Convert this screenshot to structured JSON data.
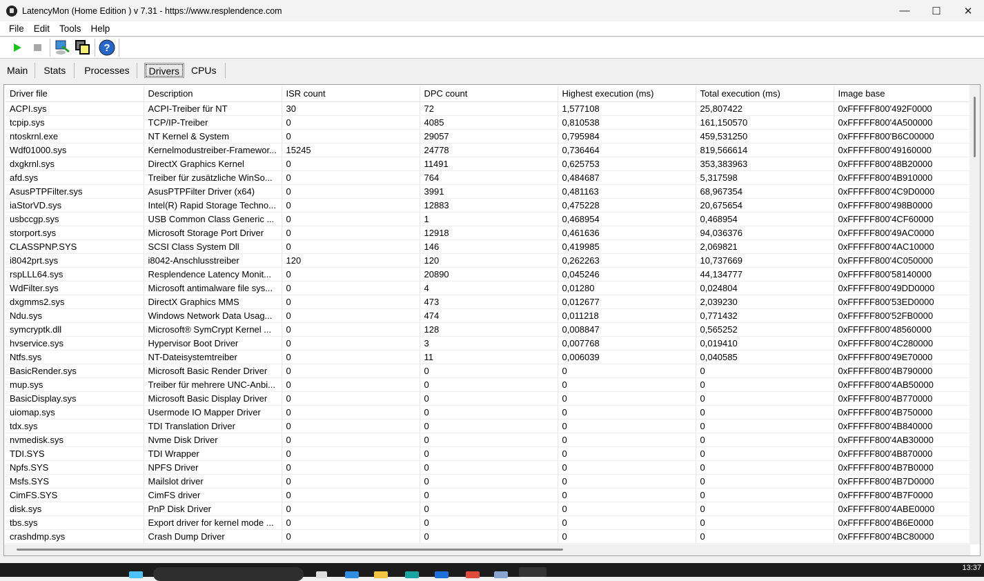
{
  "window": {
    "title": "LatencyMon  (Home Edition )  v 7.31 - https://www.resplendence.com",
    "minimize": "—",
    "maximize": "☐",
    "close": "✕"
  },
  "menu": [
    "File",
    "Edit",
    "Tools",
    "Help"
  ],
  "toolbar": {
    "icons": [
      "play-icon",
      "stop-icon",
      "computer-icon",
      "windows-icon",
      "help-icon"
    ]
  },
  "tabs": [
    {
      "label": "Main"
    },
    {
      "label": "Stats"
    },
    {
      "label": "Processes"
    },
    {
      "label": "Drivers",
      "active": true
    },
    {
      "label": "CPUs"
    }
  ],
  "table": {
    "columns": [
      "Driver file",
      "Description",
      "ISR count",
      "DPC count",
      "Highest execution (ms)",
      "Total execution (ms)",
      "Image base"
    ],
    "rows": [
      [
        "ACPI.sys",
        "ACPI-Treiber für NT",
        "30",
        "72",
        "1,577108",
        "25,807422",
        "0xFFFFF800'492F0000"
      ],
      [
        "tcpip.sys",
        "TCP/IP-Treiber",
        "0",
        "4085",
        "0,810538",
        "161,150570",
        "0xFFFFF800'4A500000"
      ],
      [
        "ntoskrnl.exe",
        "NT Kernel & System",
        "0",
        "29057",
        "0,795984",
        "459,531250",
        "0xFFFFF800'B6C00000"
      ],
      [
        "Wdf01000.sys",
        "Kernelmodustreiber-Framewor...",
        "15245",
        "24778",
        "0,736464",
        "819,566614",
        "0xFFFFF800'49160000"
      ],
      [
        "dxgkrnl.sys",
        "DirectX Graphics Kernel",
        "0",
        "11491",
        "0,625753",
        "353,383963",
        "0xFFFFF800'48B20000"
      ],
      [
        "afd.sys",
        "Treiber für zusätzliche WinSo...",
        "0",
        "764",
        "0,484687",
        "5,317598",
        "0xFFFFF800'4B910000"
      ],
      [
        "AsusPTPFilter.sys",
        "AsusPTPFilter Driver (x64)",
        "0",
        "3991",
        "0,481163",
        "68,967354",
        "0xFFFFF800'4C9D0000"
      ],
      [
        "iaStorVD.sys",
        "Intel(R) Rapid Storage Techno...",
        "0",
        "12883",
        "0,475228",
        "20,675654",
        "0xFFFFF800'498B0000"
      ],
      [
        "usbccgp.sys",
        "USB Common Class Generic ...",
        "0",
        "1",
        "0,468954",
        "0,468954",
        "0xFFFFF800'4CF60000"
      ],
      [
        "storport.sys",
        "Microsoft Storage Port Driver",
        "0",
        "12918",
        "0,461636",
        "94,036376",
        "0xFFFFF800'49AC0000"
      ],
      [
        "CLASSPNP.SYS",
        "SCSI Class System Dll",
        "0",
        "146",
        "0,419985",
        "2,069821",
        "0xFFFFF800'4AC10000"
      ],
      [
        "i8042prt.sys",
        "i8042-Anschlusstreiber",
        "120",
        "120",
        "0,262263",
        "10,737669",
        "0xFFFFF800'4C050000"
      ],
      [
        "rspLLL64.sys",
        "Resplendence Latency Monit...",
        "0",
        "20890",
        "0,045246",
        "44,134777",
        "0xFFFFF800'58140000"
      ],
      [
        "WdFilter.sys",
        "Microsoft antimalware file sys...",
        "0",
        "4",
        "0,01280",
        "0,024804",
        "0xFFFFF800'49DD0000"
      ],
      [
        "dxgmms2.sys",
        "DirectX Graphics MMS",
        "0",
        "473",
        "0,012677",
        "2,039230",
        "0xFFFFF800'53ED0000"
      ],
      [
        "Ndu.sys",
        "Windows Network Data Usag...",
        "0",
        "474",
        "0,011218",
        "0,771432",
        "0xFFFFF800'52FB0000"
      ],
      [
        "symcryptk.dll",
        "Microsoft® SymCrypt Kernel ...",
        "0",
        "128",
        "0,008847",
        "0,565252",
        "0xFFFFF800'48560000"
      ],
      [
        "hvservice.sys",
        "Hypervisor Boot Driver",
        "0",
        "3",
        "0,007768",
        "0,019410",
        "0xFFFFF800'4C280000"
      ],
      [
        "Ntfs.sys",
        "NT-Dateisystemtreiber",
        "0",
        "11",
        "0,006039",
        "0,040585",
        "0xFFFFF800'49E70000"
      ],
      [
        "BasicRender.sys",
        "Microsoft Basic Render Driver",
        "0",
        "0",
        "0",
        "0",
        "0xFFFFF800'4B790000"
      ],
      [
        "mup.sys",
        "Treiber für mehrere UNC-Anbi...",
        "0",
        "0",
        "0",
        "0",
        "0xFFFFF800'4AB50000"
      ],
      [
        "BasicDisplay.sys",
        "Microsoft Basic Display Driver",
        "0",
        "0",
        "0",
        "0",
        "0xFFFFF800'4B770000"
      ],
      [
        "uiomap.sys",
        "Usermode IO Mapper Driver",
        "0",
        "0",
        "0",
        "0",
        "0xFFFFF800'4B750000"
      ],
      [
        "tdx.sys",
        "TDI Translation Driver",
        "0",
        "0",
        "0",
        "0",
        "0xFFFFF800'4B840000"
      ],
      [
        "nvmedisk.sys",
        "Nvme Disk Driver",
        "0",
        "0",
        "0",
        "0",
        "0xFFFFF800'4AB30000"
      ],
      [
        "TDI.SYS",
        "TDI Wrapper",
        "0",
        "0",
        "0",
        "0",
        "0xFFFFF800'4B870000"
      ],
      [
        "Npfs.SYS",
        "NPFS Driver",
        "0",
        "0",
        "0",
        "0",
        "0xFFFFF800'4B7B0000"
      ],
      [
        "Msfs.SYS",
        "Mailslot driver",
        "0",
        "0",
        "0",
        "0",
        "0xFFFFF800'4B7D0000"
      ],
      [
        "CimFS.SYS",
        "CimFS driver",
        "0",
        "0",
        "0",
        "0",
        "0xFFFFF800'4B7F0000"
      ],
      [
        "disk.sys",
        "PnP Disk Driver",
        "0",
        "0",
        "0",
        "0",
        "0xFFFFF800'4ABE0000"
      ],
      [
        "tbs.sys",
        "Export driver for kernel mode ...",
        "0",
        "0",
        "0",
        "0",
        "0xFFFFF800'4B6E0000"
      ],
      [
        "crashdmp.sys",
        "Crash Dump Driver",
        "0",
        "0",
        "0",
        "0",
        "0xFFFFF800'4BC80000"
      ]
    ]
  },
  "taskbar": {
    "clock": "13:37"
  }
}
